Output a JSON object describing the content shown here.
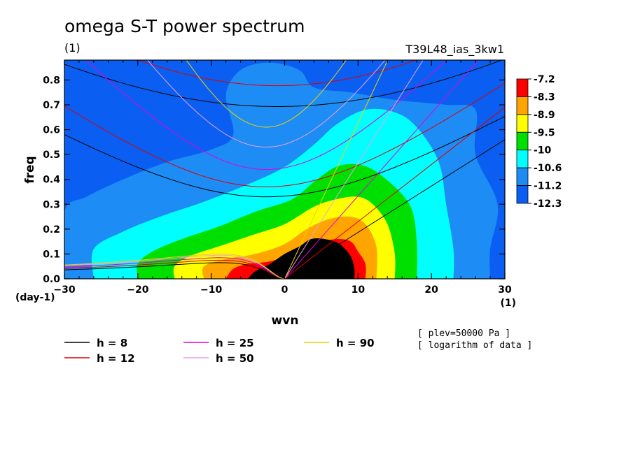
{
  "header": {
    "title": "omega S-T power spectrum",
    "units": "(1)",
    "run_name": "T39L48_ias_3kw1"
  },
  "annotations": {
    "ylabel_units": "(day-1)",
    "xlabel_units": "(1)",
    "plev": "[ plev=50000 Pa ]",
    "transform": "[ logarithm of data ]"
  },
  "colors": {
    "levels": [
      "#0a5ff2",
      "#1e8cf5",
      "#00ffff",
      "#00e000",
      "#ffff00",
      "#ffa500",
      "#ff0000"
    ],
    "h_lines": [
      "#000000",
      "#e00000",
      "#e000e0",
      "#e8a0e8",
      "#e8d400"
    ]
  },
  "chart_data": {
    "type": "heatmap",
    "title": "omega S-T power spectrum",
    "xlabel": "wvn",
    "ylabel": "freq",
    "xlim": [
      -30,
      30
    ],
    "ylim": [
      0,
      0.88
    ],
    "x_ticks": [
      -30,
      -20,
      -10,
      0,
      10,
      20,
      30
    ],
    "y_ticks": [
      0.0,
      0.1,
      0.2,
      0.3,
      0.4,
      0.5,
      0.6,
      0.7,
      0.8
    ],
    "x_tick_labels": [
      "−30",
      "−20",
      "−10",
      "0",
      "10",
      "20",
      "30"
    ],
    "y_tick_labels": [
      "0.0",
      "0.1",
      "0.2",
      "0.3",
      "0.4",
      "0.5",
      "0.6",
      "0.7",
      "0.8"
    ],
    "colorbar_labels": [
      "-7.2",
      "-8.3",
      "-8.9",
      "-9.5",
      "-10",
      "-10.6",
      "-11.2",
      "-12.3"
    ],
    "colorbar_levels": [
      -7.2,
      -8.3,
      -8.9,
      -9.5,
      -10,
      -10.6,
      -11.2,
      -12.3
    ],
    "field": {
      "peak": {
        "wvn": 5,
        "freq": 0.05,
        "value": -7.2
      },
      "background": -12.3
    },
    "dispersion_curves": {
      "equivalent_depths_m": [
        8,
        12,
        25,
        50,
        90
      ],
      "legend_labels": [
        "h =  8",
        "h = 12",
        "h = 25",
        "h = 50",
        "h = 90"
      ],
      "inertio_gravity_min_freq": [
        0.33,
        0.37,
        0.44,
        0.53,
        0.61
      ],
      "kelvin_freq_at_wvn_30": [
        0.56,
        0.69,
        1.0,
        1.4,
        1.88
      ],
      "rossby_max_freq": [
        0.065,
        0.075,
        0.085,
        0.095,
        0.1
      ]
    }
  }
}
